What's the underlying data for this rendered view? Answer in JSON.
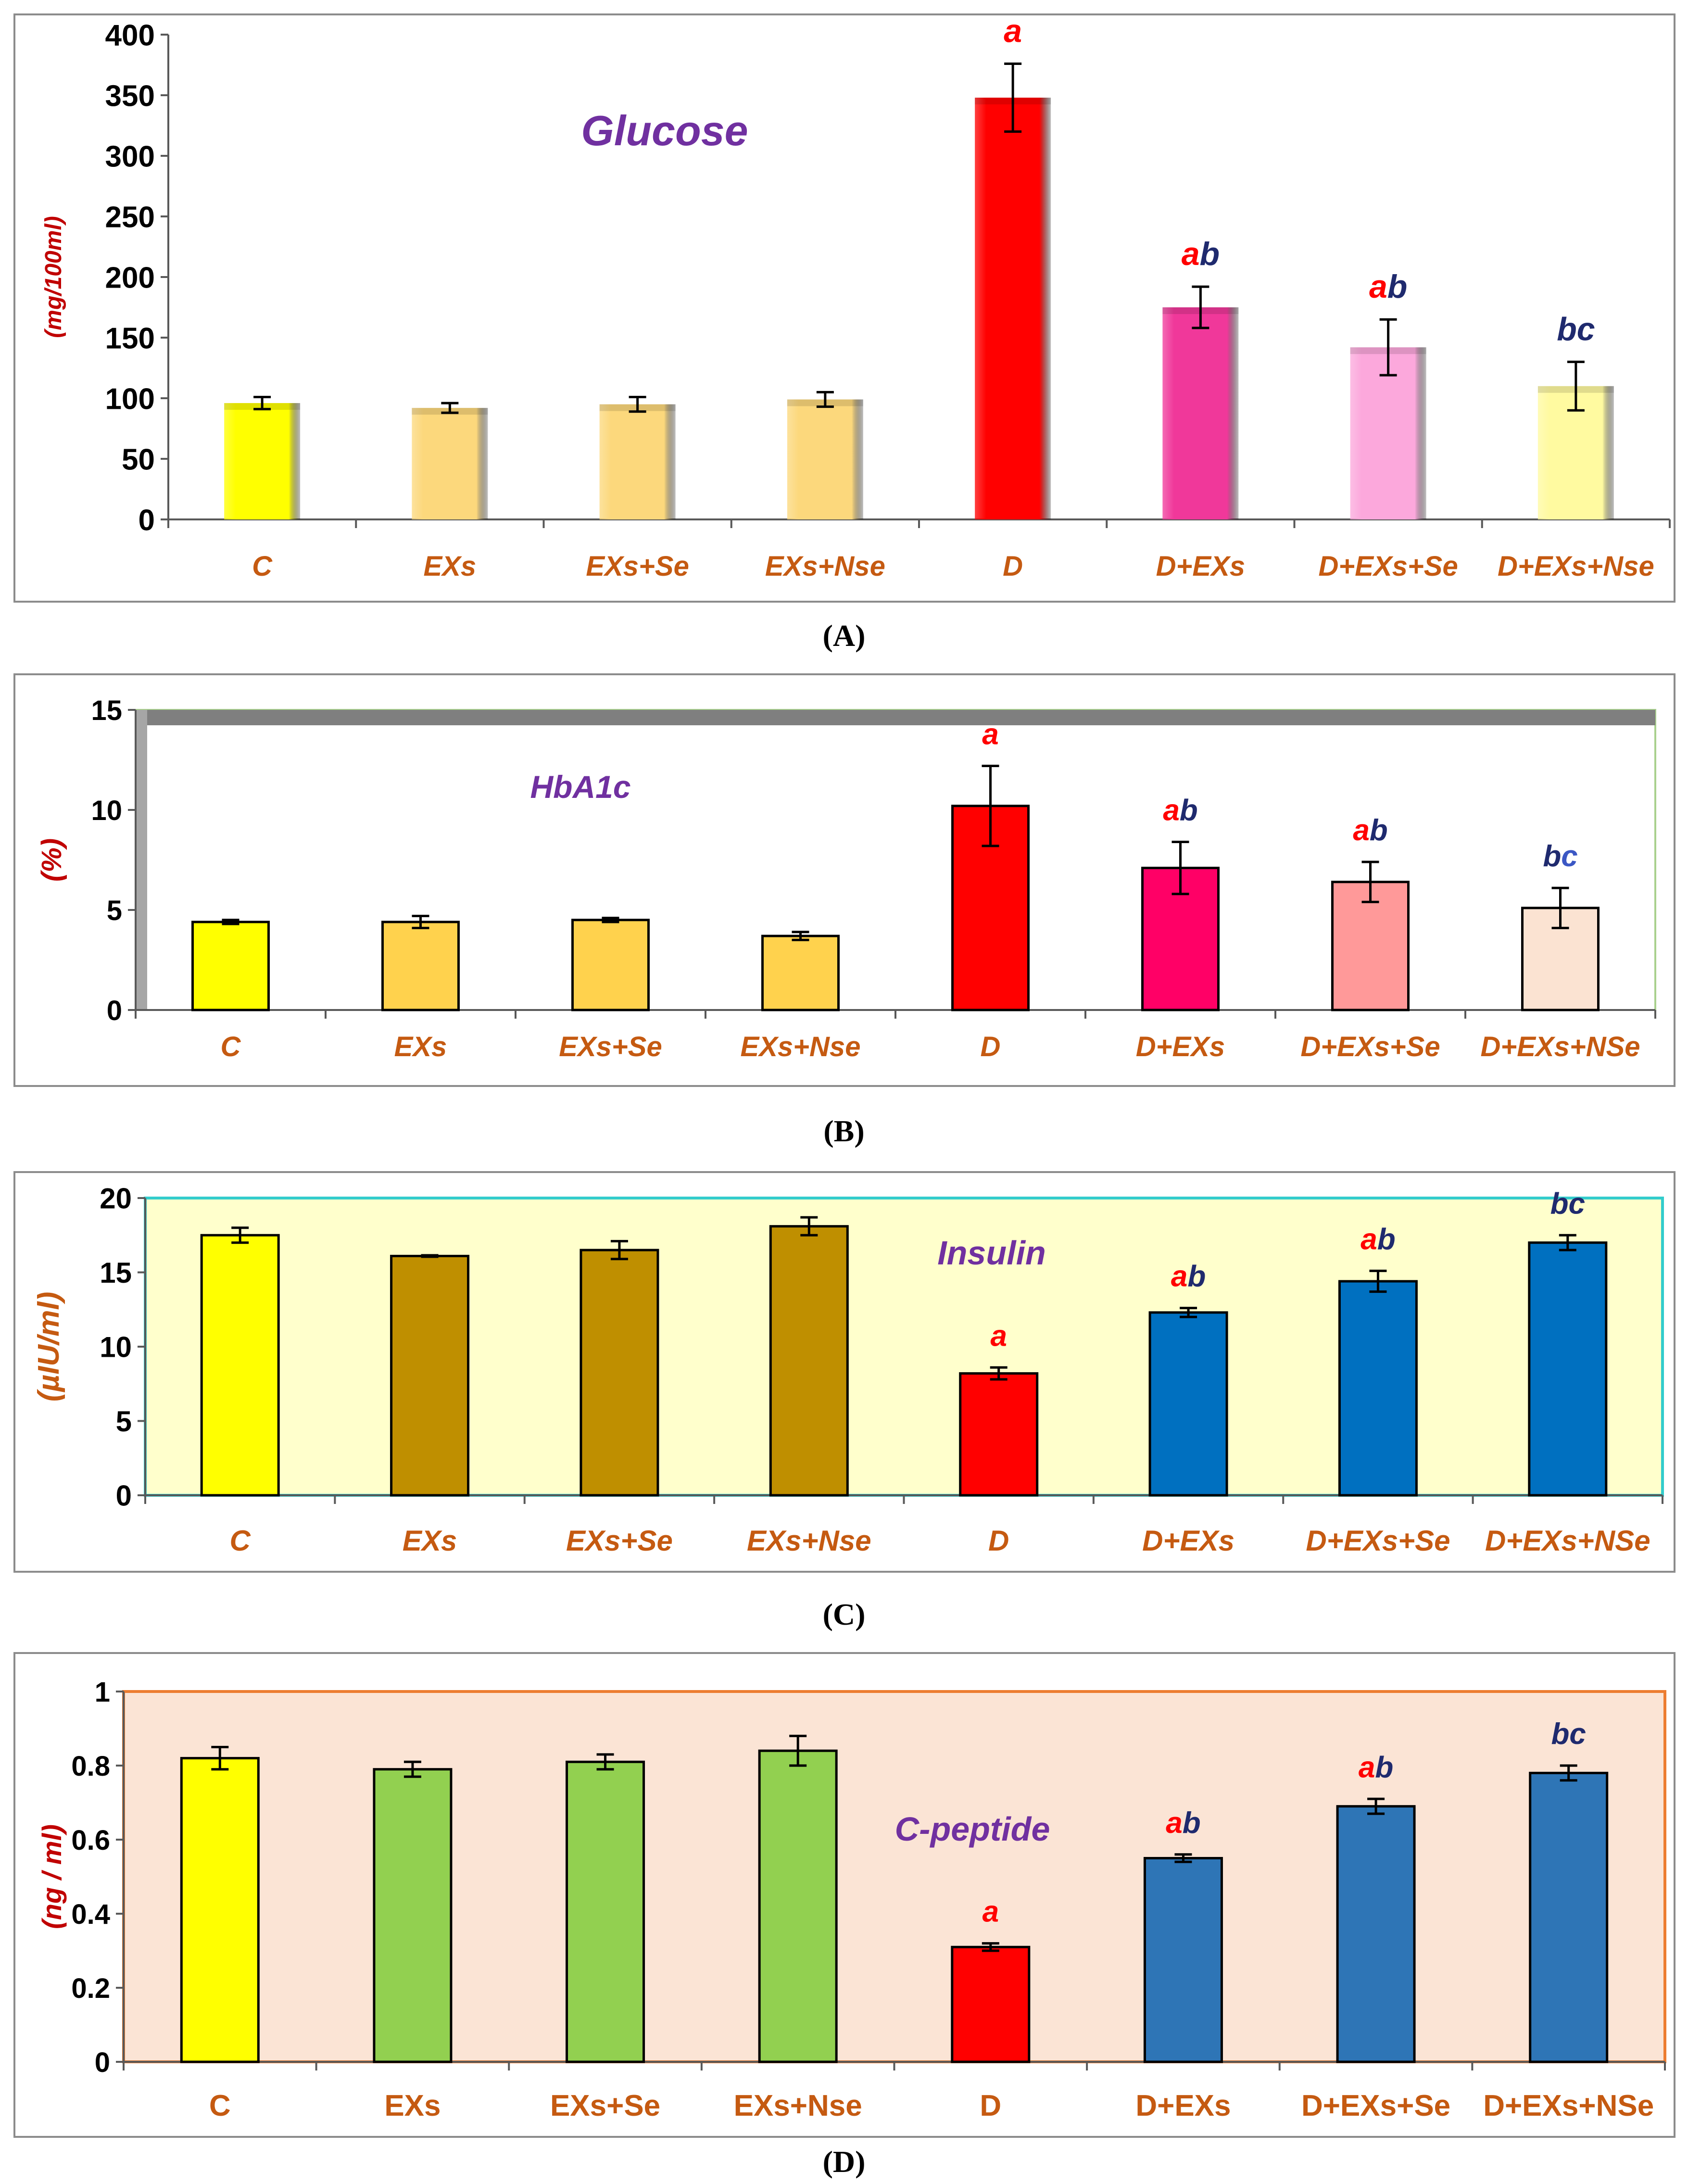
{
  "chart_data": [
    {
      "id": "A",
      "type": "bar",
      "title": "Glucose",
      "ylabel": "(mg/100ml)",
      "caption_letter": "A",
      "ylim": [
        0,
        400
      ],
      "yticks": [
        0,
        50,
        100,
        150,
        200,
        250,
        300,
        350,
        400
      ],
      "categories": [
        "C",
        "EXs",
        "EXs+Se",
        "EXs+Nse",
        "D",
        "D+EXs",
        "D+EXs+Se",
        "D+EXs+Nse"
      ],
      "values": [
        96,
        92,
        95,
        99,
        348,
        175,
        142,
        110
      ],
      "errors": [
        5,
        4,
        6,
        6,
        28,
        17,
        23,
        20
      ],
      "colors": [
        "#ffff00",
        "#fcd87c",
        "#fcd87c",
        "#fcd87c",
        "#ff0000",
        "#f0389a",
        "#fca8dc",
        "#fffaa0"
      ],
      "significance": [
        [],
        [],
        [],
        [],
        [
          {
            "t": "a",
            "c": "#ff0000"
          }
        ],
        [
          {
            "t": "a",
            "c": "#ff0000"
          },
          {
            "t": "b",
            "c": "#1f2a6e"
          }
        ],
        [
          {
            "t": "a",
            "c": "#ff0000"
          },
          {
            "t": "b",
            "c": "#1f2a6e"
          }
        ],
        [
          {
            "t": "bc",
            "c": "#1f2a6e"
          }
        ]
      ]
    },
    {
      "id": "B",
      "type": "bar",
      "title": "HbA1c",
      "ylabel": "(%)",
      "caption_letter": "B",
      "ylim": [
        0,
        15
      ],
      "yticks": [
        0,
        5,
        10,
        15
      ],
      "categories": [
        "C",
        "EXs",
        "EXs+Se",
        "EXs+Nse",
        "D",
        "D+EXs",
        "D+EXs+Se",
        "D+EXs+NSe"
      ],
      "values": [
        4.4,
        4.4,
        4.5,
        3.7,
        10.2,
        7.1,
        6.4,
        5.1
      ],
      "errors": [
        0.1,
        0.3,
        0.1,
        0.2,
        2.0,
        1.3,
        1.0,
        1.0
      ],
      "colors": [
        "#ffff00",
        "#ffd24d",
        "#ffd24d",
        "#ffd24d",
        "#ff0000",
        "#ff0066",
        "#ff9999",
        "#fbe3d2"
      ],
      "significance": [
        [],
        [],
        [],
        [],
        [
          {
            "t": "a",
            "c": "#ff0000"
          }
        ],
        [
          {
            "t": "a",
            "c": "#ff0000"
          },
          {
            "t": "b",
            "c": "#1f2a6e"
          }
        ],
        [
          {
            "t": "a",
            "c": "#ff0000"
          },
          {
            "t": "b",
            "c": "#1f2a6e"
          }
        ],
        [
          {
            "t": "b",
            "c": "#1f2a6e"
          },
          {
            "t": "c",
            "c": "#3b57c4"
          }
        ]
      ]
    },
    {
      "id": "C",
      "type": "bar",
      "title": "Insulin",
      "ylabel": "(µIU/ml)",
      "caption_letter": "C",
      "ylim": [
        0,
        20
      ],
      "yticks": [
        0,
        5,
        10,
        15,
        20
      ],
      "categories": [
        "C",
        "EXs",
        "EXs+Se",
        "EXs+Nse",
        "D",
        "D+EXs",
        "D+EXs+Se",
        "D+EXs+NSe"
      ],
      "values": [
        17.5,
        16.1,
        16.5,
        18.1,
        8.2,
        12.3,
        14.4,
        17.0
      ],
      "errors": [
        0.5,
        0.05,
        0.6,
        0.6,
        0.4,
        0.3,
        0.7,
        0.5
      ],
      "colors": [
        "#ffff00",
        "#bf8f00",
        "#bf8f00",
        "#bf8f00",
        "#ff0000",
        "#0070c0",
        "#0070c0",
        "#0070c0"
      ],
      "significance": [
        [],
        [],
        [],
        [],
        [
          {
            "t": "a",
            "c": "#ff0000"
          }
        ],
        [
          {
            "t": "a",
            "c": "#ff0000"
          },
          {
            "t": "b",
            "c": "#1f2a6e"
          }
        ],
        [
          {
            "t": "a",
            "c": "#ff0000"
          },
          {
            "t": "b",
            "c": "#1f2a6e"
          }
        ],
        [
          {
            "t": "bc",
            "c": "#1f2a6e"
          }
        ]
      ]
    },
    {
      "id": "D",
      "type": "bar",
      "title": "C-peptide",
      "ylabel": "(ng / ml)",
      "caption_letter": "D",
      "ylim": [
        0,
        1
      ],
      "yticks": [
        0,
        0.2,
        0.4,
        0.6,
        0.8,
        1
      ],
      "categories": [
        "C",
        "EXs",
        "EXs+Se",
        "EXs+Nse",
        "D",
        "D+EXs",
        "D+EXs+Se",
        "D+EXs+NSe"
      ],
      "values": [
        0.82,
        0.79,
        0.81,
        0.84,
        0.31,
        0.55,
        0.69,
        0.78
      ],
      "errors": [
        0.03,
        0.02,
        0.02,
        0.04,
        0.01,
        0.01,
        0.02,
        0.02
      ],
      "colors": [
        "#ffff00",
        "#92d050",
        "#92d050",
        "#92d050",
        "#ff0000",
        "#2e75b6",
        "#2e75b6",
        "#2e75b6"
      ],
      "significance": [
        [],
        [],
        [],
        [],
        [
          {
            "t": "a",
            "c": "#ff0000"
          }
        ],
        [
          {
            "t": "a",
            "c": "#ff0000"
          },
          {
            "t": "b",
            "c": "#1f2a6e"
          }
        ],
        [
          {
            "t": "a",
            "c": "#ff0000"
          },
          {
            "t": "b",
            "c": "#1f2a6e"
          }
        ],
        [
          {
            "t": "bc",
            "c": "#1f2a6e"
          }
        ]
      ]
    }
  ],
  "captions": [
    "(A)",
    "(B)",
    "(C)",
    "(D)"
  ],
  "colors": {
    "tick_label": "#c55a11",
    "title": "#7030a0",
    "axis": "#595959"
  }
}
